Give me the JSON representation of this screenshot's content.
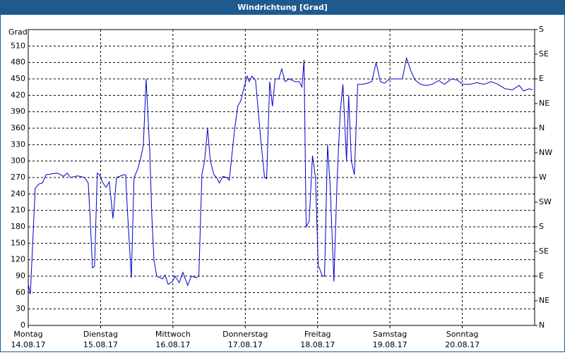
{
  "chart_data": {
    "type": "line",
    "title": "Windrichtung [Grad]",
    "y_label": "Grad",
    "xlim": [
      0,
      168
    ],
    "xticks": [
      {
        "value": 0,
        "label": "Montag"
      },
      {
        "value": 24,
        "label": "Dienstag"
      },
      {
        "value": 48,
        "label": "Mittwoch"
      },
      {
        "value": 72,
        "label": "Donnerstag"
      },
      {
        "value": 96,
        "label": "Freitag"
      },
      {
        "value": 120,
        "label": "Samstag"
      },
      {
        "value": 144,
        "label": "Sonntag"
      }
    ],
    "xtick_dates": [
      "14.08.17",
      "15.08.17",
      "16.08.17",
      "17.08.17",
      "18.08.17",
      "19.08.17",
      "20.08.17"
    ],
    "ylim": [
      0,
      540
    ],
    "yticks": [
      0,
      30,
      60,
      90,
      120,
      150,
      180,
      210,
      240,
      270,
      300,
      330,
      360,
      390,
      420,
      450,
      480,
      510
    ],
    "y2lim": [
      0,
      540
    ],
    "y2ticks": [
      {
        "value": 0,
        "label": "N"
      },
      {
        "value": 45,
        "label": "NE"
      },
      {
        "value": 90,
        "label": "E"
      },
      {
        "value": 135,
        "label": "SE"
      },
      {
        "value": 180,
        "label": "S"
      },
      {
        "value": 225,
        "label": "SW"
      },
      {
        "value": 270,
        "label": "W"
      },
      {
        "value": 315,
        "label": "NW"
      },
      {
        "value": 360,
        "label": "N"
      },
      {
        "value": 405,
        "label": "NE"
      },
      {
        "value": 450,
        "label": "E"
      },
      {
        "value": 495,
        "label": "SE"
      },
      {
        "value": 540,
        "label": "S"
      }
    ],
    "grid": true,
    "x": [
      0,
      0.7,
      2.3,
      3.5,
      4.7,
      5.9,
      9.4,
      10.5,
      11.7,
      12.9,
      14,
      16.4,
      18.7,
      19.9,
      20.6,
      21.3,
      22,
      22.9,
      23.6,
      24.8,
      25.8,
      26.9,
      28.1,
      29.3,
      31.6,
      32.3,
      33,
      34.2,
      35.1,
      36.3,
      37.5,
      38.2,
      39.1,
      40.3,
      41,
      41.7,
      42.6,
      44.5,
      45.4,
      46.4,
      47.8,
      48.7,
      50.1,
      51.3,
      52.9,
      54.1,
      55.7,
      56.6,
      57.6,
      58.5,
      59.5,
      60.4,
      61.6,
      62.5,
      63.4,
      64.6,
      65.8,
      66.7,
      68.4,
      69.5,
      70.5,
      71.4,
      72.6,
      73.3,
      74.2,
      75.4,
      77.3,
      78.4,
      79.1,
      80.1,
      81,
      81.9,
      83.1,
      84.1,
      85.2,
      86.6,
      88.5,
      89.9,
      90.8,
      91.5,
      92.2,
      93.2,
      94.3,
      95.3,
      96.2,
      97.6,
      98.3,
      99.3,
      100.2,
      101.4,
      102.5,
      103.5,
      104.4,
      105.6,
      106.3,
      107.2,
      108.2,
      109.3,
      110.7,
      112.4,
      114,
      115.4,
      116.8,
      118.2,
      119.9,
      121.7,
      123.1,
      124.1,
      125.5,
      126.9,
      128.3,
      130.2,
      132,
      133.9,
      136.2,
      138.1,
      140.4,
      142.3,
      144.2,
      146.5,
      148.9,
      151.2,
      153.6,
      155.9,
      158.2,
      160.6,
      162.9,
      164.3,
      166.2,
      167.4
    ],
    "series": [
      {
        "name": "Windrichtung",
        "color": "#0000c8",
        "values": [
          75,
          57,
          250,
          258,
          260,
          275,
          278,
          276,
          272,
          278,
          270,
          273,
          270,
          260,
          190,
          105,
          108,
          278,
          275,
          260,
          252,
          262,
          195,
          270,
          275,
          275,
          200,
          87,
          270,
          285,
          310,
          330,
          450,
          320,
          200,
          120,
          90,
          85,
          92,
          75,
          80,
          90,
          78,
          97,
          73,
          90,
          87,
          90,
          275,
          300,
          360,
          300,
          275,
          270,
          260,
          272,
          270,
          265,
          355,
          400,
          410,
          430,
          455,
          445,
          455,
          448,
          330,
          270,
          268,
          445,
          400,
          450,
          450,
          468,
          445,
          450,
          445,
          445,
          435,
          485,
          180,
          190,
          310,
          270,
          110,
          90,
          90,
          330,
          250,
          80,
          270,
          390,
          440,
          300,
          420,
          300,
          275,
          440,
          440,
          442,
          445,
          480,
          445,
          442,
          450,
          450,
          450,
          450,
          488,
          465,
          448,
          440,
          438,
          440,
          447,
          440,
          450,
          448,
          440,
          440,
          443,
          440,
          445,
          440,
          432,
          430,
          438,
          428,
          432,
          430
        ]
      }
    ]
  }
}
